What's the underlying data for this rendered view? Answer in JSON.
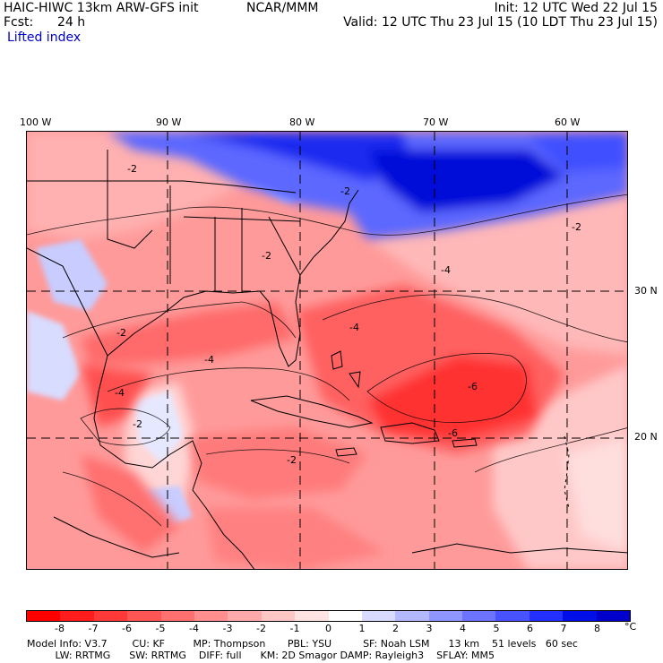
{
  "header": {
    "line1_left": "HAIC-HIWC 13km ARW-GFS init",
    "line1_mid": "NCAR/MMM",
    "line1_right": "Init: 12 UTC Wed 22 Jul 15",
    "line2_left_label": "Fcst:",
    "line2_left_value": "24 h",
    "line2_right": "Valid: 12 UTC Thu 23 Jul 15 (10 LDT Thu 23 Jul 15)",
    "field_name": "Lifted index"
  },
  "map": {
    "lon_labels": [
      "100 W",
      "90 W",
      "80 W",
      "70 W",
      "60 W"
    ],
    "lat_labels": [
      "30 N",
      "20 N"
    ],
    "contour_labels": [
      "-2",
      "-2",
      "-2",
      "-4",
      "-2",
      "-2",
      "-4",
      "-6",
      "-4",
      "-2",
      "-4",
      "-2",
      "-6"
    ],
    "colors": {
      "deep_red": "#ff2a2a",
      "red": "#ff6666",
      "light_red": "#ff9999",
      "pale_red": "#ffcccc",
      "blue": "#3a4fff",
      "deep_blue": "#0010d8",
      "pale_blue": "#c8ccff"
    }
  },
  "colorbar": {
    "labels": [
      "-8",
      "-7",
      "-6",
      "-5",
      "-4",
      "-3",
      "-2",
      "-1",
      "0",
      "1",
      "2",
      "3",
      "4",
      "5",
      "6",
      "7",
      "8"
    ],
    "unit": "°C",
    "colors": [
      "#ff0000",
      "#ff1c1c",
      "#ff3838",
      "#ff5555",
      "#ff7171",
      "#ff8e8e",
      "#ffaaaa",
      "#ffc6c6",
      "#ffe3e3",
      "#ffffff",
      "#d8dbff",
      "#b4b8ff",
      "#9096ff",
      "#6c74ff",
      "#4852ff",
      "#2430ff",
      "#000ee8",
      "#0000cc"
    ]
  },
  "model_info": {
    "line1": "Model Info: V3.7        CU: KF         MP: Thompson       PBL: YSU          SF: Noah LSM      13 km    51 levels   60 sec",
    "line2": "         LW: RRTMG      SW: RRTMG    DIFF: full      KM: 2D Smagor DAMP: Rayleigh3    SFLAY: MM5"
  }
}
